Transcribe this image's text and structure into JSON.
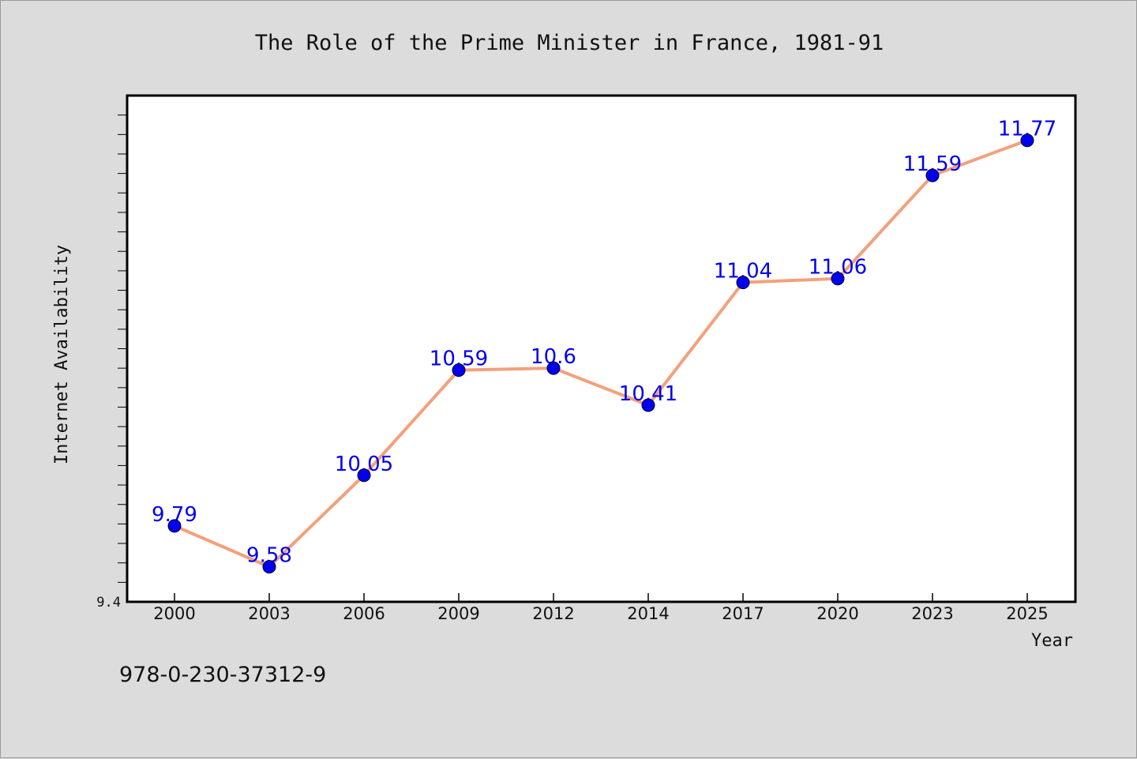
{
  "chart_data": {
    "type": "line",
    "title": "The Role of the Prime Minister in France, 1981-91",
    "xlabel": "Year",
    "ylabel": "Internet Availability",
    "categories": [
      "2000",
      "2003",
      "2006",
      "2009",
      "2012",
      "2014",
      "2017",
      "2020",
      "2023",
      "2025"
    ],
    "series": [
      {
        "values": [
          9.79,
          9.58,
          10.05,
          10.59,
          10.6,
          10.41,
          11.04,
          11.06,
          11.59,
          11.77
        ],
        "labels": [
          "9.79",
          "9.58",
          "10.05",
          "10.59",
          "10.6",
          "10.41",
          "11.04",
          "11.06",
          "11.59",
          "11.77"
        ]
      }
    ],
    "ylim": [
      9.4,
      12.0
    ],
    "y_tick_labels": [
      "9.4"
    ],
    "grid": false,
    "line_color": "#f4a07c",
    "marker_color": "#0000ee",
    "label_color": "#0000ee"
  },
  "footer_text": "978-0-230-37312-9"
}
